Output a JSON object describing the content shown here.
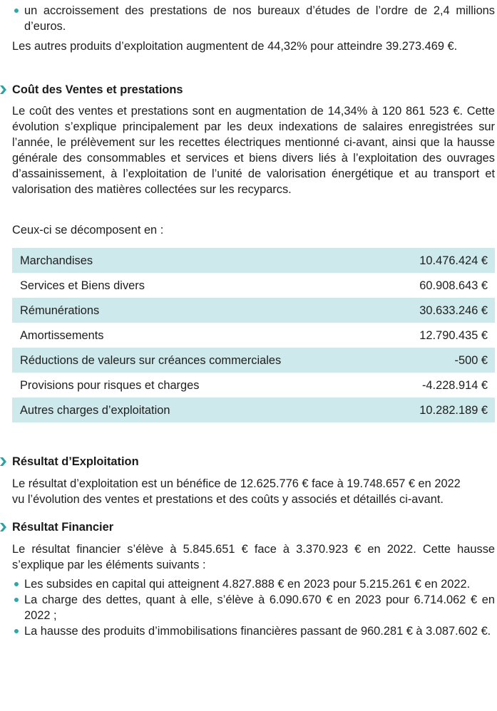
{
  "intro": {
    "bullet": "un accroissement des prestations de nos bureaux d’études de l’ordre de 2,4 millions d’euros.",
    "paragraph": "Les autres produits d’exploitation augmentent de 44,32% pour atteindre 39.273.469 €."
  },
  "cout_ventes": {
    "heading": "Coût des Ventes et prestations",
    "paragraph": "Le coût des ventes et prestations sont en augmentation de 14,34% à 120 861 523 €. Cette évolution s’explique principalement par les deux indexations de salaires enregistrées sur l’année, le prélèvement sur les recettes électriques mentionné ci-avant, ainsi que la hausse générale des consommables et services et biens divers liés à l’exploitation des ouvrages d’assainissement, à l’exploitation de l’unité de valorisation énergétique et au transport et valorisation des matières collectées sur les recyparcs.",
    "decomposition_intro": "Ceux-ci se décomposent en :",
    "rows": [
      {
        "label": "Marchandises",
        "value": "10.476.424 €"
      },
      {
        "label": "Services et Biens divers",
        "value": "60.908.643 €"
      },
      {
        "label": "Rémunérations",
        "value": "30.633.246 €"
      },
      {
        "label": "Amortissements",
        "value": "12.790.435 €"
      },
      {
        "label": "Réductions de valeurs sur créances commerciales",
        "value": "-500 €"
      },
      {
        "label": "Provisions pour risques et charges",
        "value": "-4.228.914 €"
      },
      {
        "label": "Autres charges d’exploitation",
        "value": "10.282.189 €"
      }
    ]
  },
  "resultat_exploitation": {
    "heading": "Résultat d’Exploitation",
    "line1": "Le résultat d’exploitation est un bénéfice de 12.625.776 € face à 19.748.657 € en 2022",
    "line2": "vu l’évolution des ventes et prestations et des coûts y associés et détaillés ci-avant."
  },
  "resultat_financier": {
    "heading": "Résultat Financier",
    "paragraph": "Le résultat financier s’élève à 5.845.651 € face à 3.370.923 € en 2022. Cette hausse s’explique par les éléments suivants :",
    "bullets": [
      "Les subsides en capital qui atteignent 4.827.888 € en 2023 pour 5.215.261 € en 2022.",
      "La charge des dettes, quant à elle, s’élève à 6.090.670 € en 2023 pour 6.714.062 € en 2022 ;",
      "La hausse des produits d’immobilisations financières passant de 960.281 € à 3.087.602 €."
    ]
  },
  "colors": {
    "accent": "#2ba2a4",
    "table_shade": "#cde9ec",
    "text": "#1e1e1e"
  },
  "icons": {
    "heading_marker": "chevron-right-icon",
    "list_marker": "bullet-dot-icon"
  }
}
